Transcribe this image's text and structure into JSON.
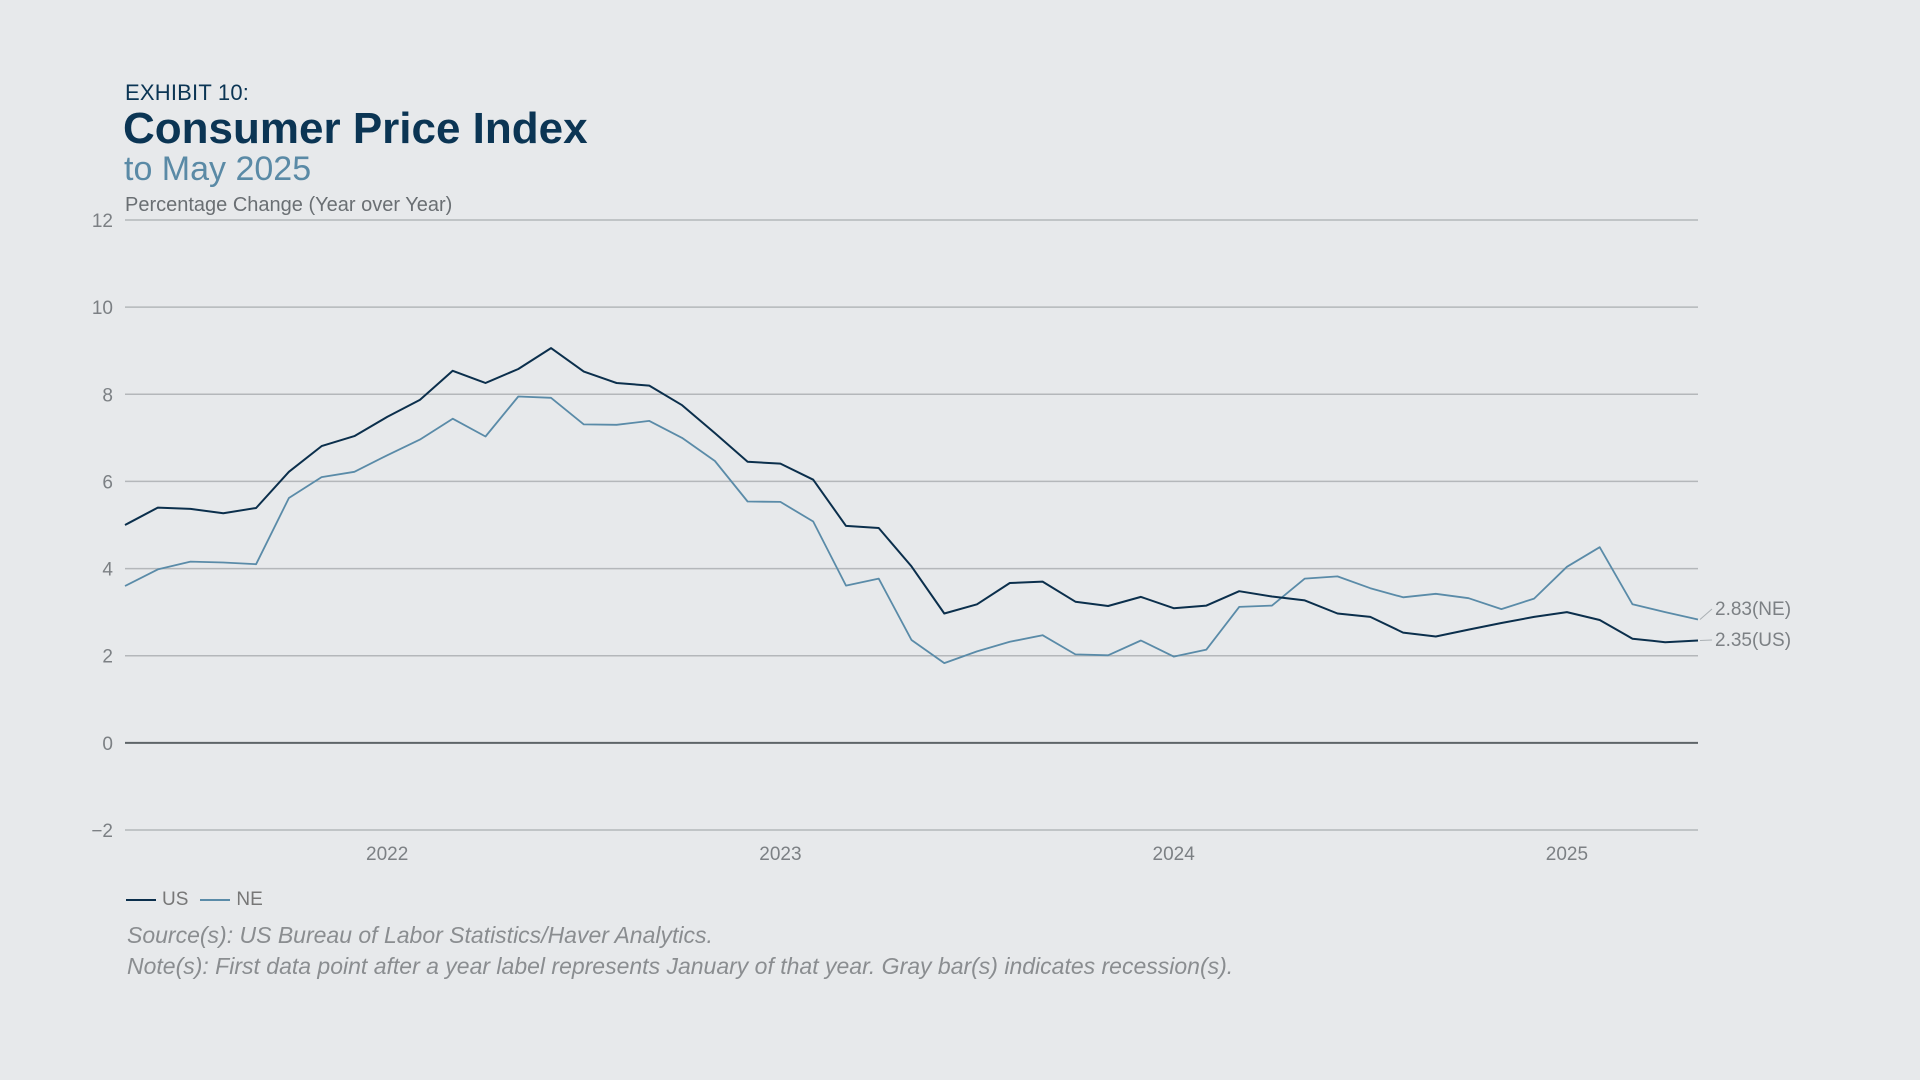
{
  "header": {
    "exhibit": "EXHIBIT 10:",
    "title": "Consumer Price Index",
    "subtitle": "to May 2025",
    "unit_label": "Percentage Change (Year over Year)"
  },
  "footer": {
    "source": "Source(s): US Bureau of Labor Statistics/Haver Analytics.",
    "note": "Note(s): First data point after a year label represents January of that year. Gray bar(s) indicates recession(s)."
  },
  "colors": {
    "US": "#0b2f4c",
    "NE": "#5a8ba8",
    "grid": "#b4b7ba",
    "zero_line": "#5e6468",
    "tick_text": "#7c8084",
    "background": "#e7e9eb"
  },
  "chart_data": {
    "type": "line",
    "start": "2021-05",
    "end": "2025-05",
    "x_ticks": [
      "2022",
      "2023",
      "2024",
      "2025"
    ],
    "ylim": [
      -2,
      12
    ],
    "y_ticks": [
      -2,
      0,
      2,
      4,
      6,
      8,
      10,
      12
    ],
    "grid": true,
    "legend": "bottom-left",
    "series": [
      {
        "name": "US",
        "values": [
          5.0,
          5.4,
          5.37,
          5.27,
          5.39,
          6.22,
          6.81,
          7.04,
          7.48,
          7.87,
          8.54,
          8.26,
          8.58,
          9.06,
          8.52,
          8.26,
          8.2,
          7.75,
          7.11,
          6.45,
          6.41,
          6.04,
          4.98,
          4.93,
          4.05,
          2.97,
          3.18,
          3.67,
          3.7,
          3.24,
          3.14,
          3.35,
          3.09,
          3.15,
          3.48,
          3.36,
          3.27,
          2.97,
          2.89,
          2.53,
          2.44,
          2.6,
          2.75,
          2.89,
          3.0,
          2.82,
          2.39,
          2.31,
          2.35
        ],
        "end_label": "2.35(US)"
      },
      {
        "name": "NE",
        "values": [
          3.6,
          3.98,
          4.16,
          4.14,
          4.1,
          5.62,
          6.1,
          6.22,
          6.6,
          6.96,
          7.44,
          7.03,
          7.95,
          7.92,
          7.31,
          7.3,
          7.39,
          7.0,
          6.47,
          5.54,
          5.53,
          5.08,
          3.61,
          3.77,
          2.36,
          1.83,
          2.1,
          2.32,
          2.47,
          2.03,
          2.01,
          2.35,
          1.98,
          2.14,
          3.12,
          3.15,
          3.77,
          3.82,
          3.55,
          3.34,
          3.42,
          3.32,
          3.07,
          3.31,
          4.04,
          4.49,
          3.18,
          3.0,
          2.83
        ],
        "end_label": "2.83(NE)"
      }
    ]
  }
}
